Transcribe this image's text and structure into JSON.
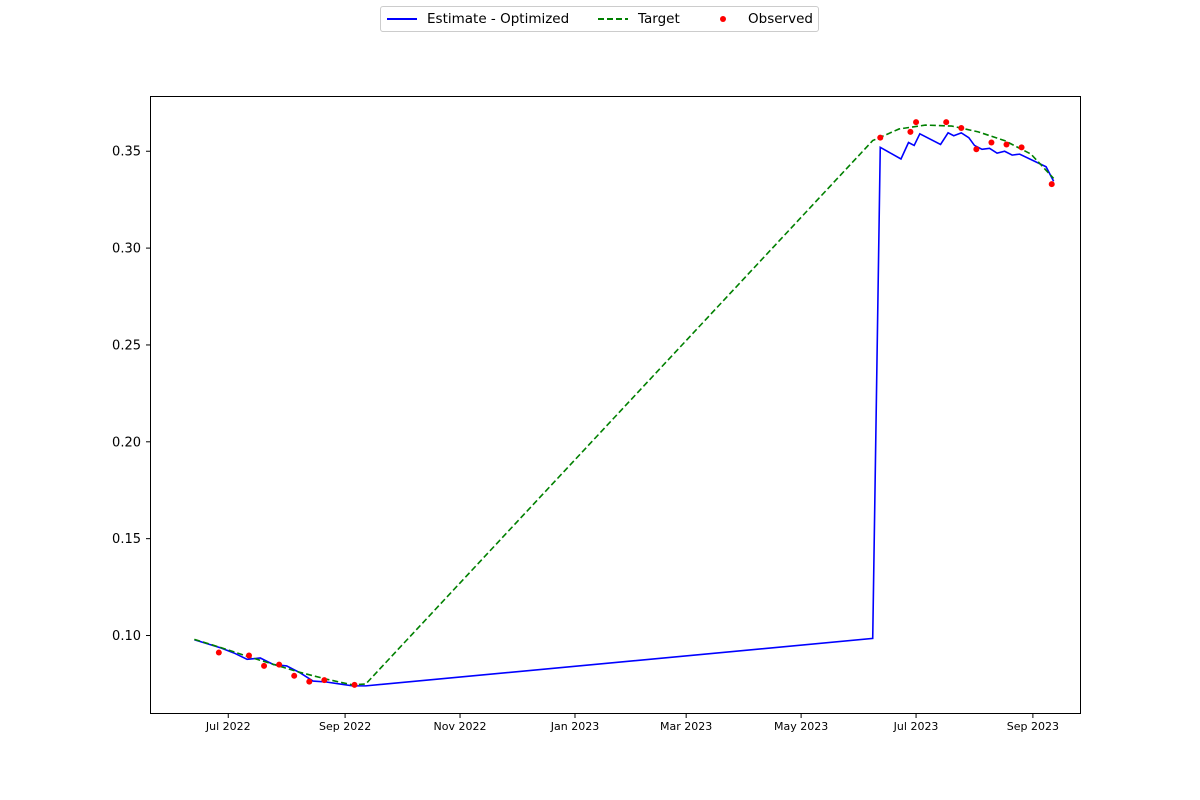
{
  "chart_data": {
    "type": "line",
    "title": "",
    "xlabel": "",
    "ylabel": "",
    "x_axis_type": "date",
    "xlim": [
      "2022-05-21",
      "2023-09-26"
    ],
    "ylim": [
      0.06,
      0.378
    ],
    "x_ticks": [
      {
        "date": "2022-07-01",
        "label": "Jul 2022"
      },
      {
        "date": "2022-09-01",
        "label": "Sep 2022"
      },
      {
        "date": "2022-11-01",
        "label": "Nov 2022"
      },
      {
        "date": "2023-01-01",
        "label": "Jan 2023"
      },
      {
        "date": "2023-03-01",
        "label": "Mar 2023"
      },
      {
        "date": "2023-05-01",
        "label": "May 2023"
      },
      {
        "date": "2023-07-01",
        "label": "Jul 2023"
      },
      {
        "date": "2023-09-01",
        "label": "Sep 2023"
      }
    ],
    "y_ticks": [
      {
        "value": 0.1,
        "label": "0.10"
      },
      {
        "value": 0.15,
        "label": "0.15"
      },
      {
        "value": 0.2,
        "label": "0.20"
      },
      {
        "value": 0.25,
        "label": "0.25"
      },
      {
        "value": 0.3,
        "label": "0.30"
      },
      {
        "value": 0.35,
        "label": "0.35"
      }
    ],
    "grid": false,
    "legend_position": "top-center",
    "series": [
      {
        "name": "Estimate - Optimized",
        "type": "line",
        "style": "solid",
        "color": "#0000ff",
        "points": [
          [
            "2022-06-13",
            0.0978
          ],
          [
            "2022-06-27",
            0.0936
          ],
          [
            "2022-07-04",
            0.091
          ],
          [
            "2022-07-11",
            0.0877
          ],
          [
            "2022-07-18",
            0.0884
          ],
          [
            "2022-07-25",
            0.085
          ],
          [
            "2022-08-01",
            0.0843
          ],
          [
            "2022-08-08",
            0.0808
          ],
          [
            "2022-08-15",
            0.0765
          ],
          [
            "2022-08-22",
            0.076
          ],
          [
            "2022-08-29",
            0.075
          ],
          [
            "2022-09-05",
            0.074
          ],
          [
            "2022-09-12",
            0.074
          ],
          [
            "2023-06-08",
            0.0985
          ],
          [
            "2023-06-12",
            0.352
          ],
          [
            "2023-06-23",
            0.346
          ],
          [
            "2023-06-27",
            0.3545
          ],
          [
            "2023-06-30",
            0.353
          ],
          [
            "2023-07-03",
            0.359
          ],
          [
            "2023-07-14",
            0.3535
          ],
          [
            "2023-07-18",
            0.3595
          ],
          [
            "2023-07-21",
            0.358
          ],
          [
            "2023-07-25",
            0.3595
          ],
          [
            "2023-07-29",
            0.357
          ],
          [
            "2023-08-01",
            0.353
          ],
          [
            "2023-08-05",
            0.351
          ],
          [
            "2023-08-09",
            0.3515
          ],
          [
            "2023-08-13",
            0.349
          ],
          [
            "2023-08-17",
            0.35
          ],
          [
            "2023-08-21",
            0.348
          ],
          [
            "2023-08-25",
            0.3485
          ],
          [
            "2023-09-08",
            0.342
          ],
          [
            "2023-09-12",
            0.3345
          ]
        ]
      },
      {
        "name": "Target",
        "type": "line",
        "style": "dashed",
        "color": "#008000",
        "points": [
          [
            "2022-06-13",
            0.098
          ],
          [
            "2022-06-27",
            0.0938
          ],
          [
            "2022-07-11",
            0.0893
          ],
          [
            "2022-07-25",
            0.0851
          ],
          [
            "2022-08-08",
            0.081
          ],
          [
            "2022-08-22",
            0.0775
          ],
          [
            "2022-09-05",
            0.0745
          ],
          [
            "2022-09-12",
            0.075
          ],
          [
            "2023-06-08",
            0.3555
          ],
          [
            "2023-06-22",
            0.3615
          ],
          [
            "2023-07-06",
            0.3635
          ],
          [
            "2023-07-20",
            0.363
          ],
          [
            "2023-08-03",
            0.36
          ],
          [
            "2023-08-17",
            0.3555
          ],
          [
            "2023-08-31",
            0.3485
          ],
          [
            "2023-09-12",
            0.336
          ]
        ]
      },
      {
        "name": "Observed",
        "type": "scatter",
        "color": "#ff0000",
        "points": [
          [
            "2022-06-26",
            0.0912
          ],
          [
            "2022-07-12",
            0.0897
          ],
          [
            "2022-07-20",
            0.0843
          ],
          [
            "2022-07-28",
            0.085
          ],
          [
            "2022-08-05",
            0.0792
          ],
          [
            "2022-08-13",
            0.0762
          ],
          [
            "2022-08-21",
            0.077
          ],
          [
            "2022-09-06",
            0.0745
          ],
          [
            "2023-06-12",
            0.357
          ],
          [
            "2023-06-28",
            0.36
          ],
          [
            "2023-07-01",
            0.365
          ],
          [
            "2023-07-17",
            0.365
          ],
          [
            "2023-07-25",
            0.362
          ],
          [
            "2023-08-02",
            0.351
          ],
          [
            "2023-08-10",
            0.3545
          ],
          [
            "2023-08-18",
            0.3535
          ],
          [
            "2023-08-26",
            0.352
          ],
          [
            "2023-09-11",
            0.333
          ]
        ]
      }
    ]
  }
}
